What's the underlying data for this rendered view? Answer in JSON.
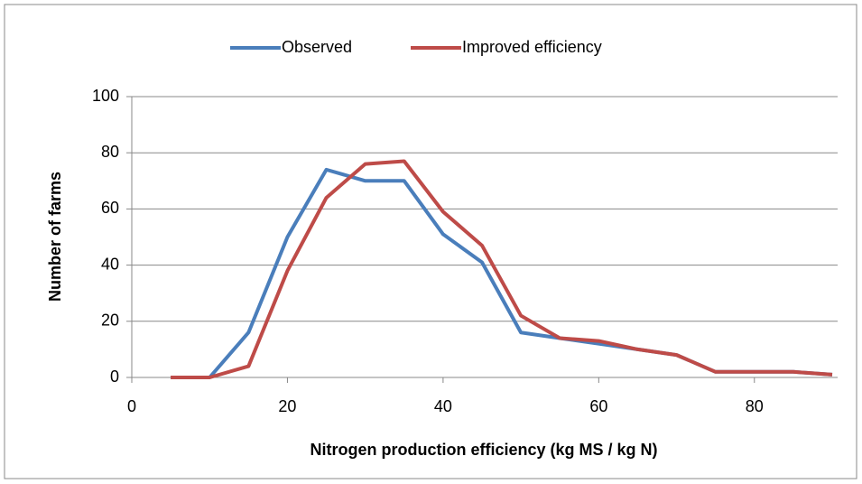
{
  "chart_data": {
    "type": "line",
    "x": [
      5,
      10,
      15,
      20,
      25,
      30,
      35,
      40,
      45,
      50,
      55,
      60,
      65,
      70,
      75,
      80,
      85,
      90
    ],
    "series": [
      {
        "name": "Observed",
        "color": "#4a7ebb",
        "values": [
          0,
          0,
          16,
          50,
          74,
          70,
          70,
          51,
          41,
          16,
          14,
          12,
          10,
          8,
          2,
          2,
          2,
          1
        ]
      },
      {
        "name": "Improved efficiency",
        "color": "#be4b48",
        "values": [
          0,
          0,
          4,
          38,
          64,
          76,
          77,
          59,
          47,
          22,
          14,
          13,
          10,
          8,
          2,
          2,
          2,
          1
        ]
      }
    ],
    "xlabel": "Nitrogen production efficiency (kg MS / kg N)",
    "ylabel": "Number of farms",
    "xlim": [
      0,
      90
    ],
    "xticks": [
      0,
      20,
      40,
      60,
      80
    ],
    "ylim": [
      0,
      100
    ],
    "yticks": [
      0,
      20,
      40,
      60,
      80,
      100
    ],
    "grid": true,
    "legend": "top"
  }
}
